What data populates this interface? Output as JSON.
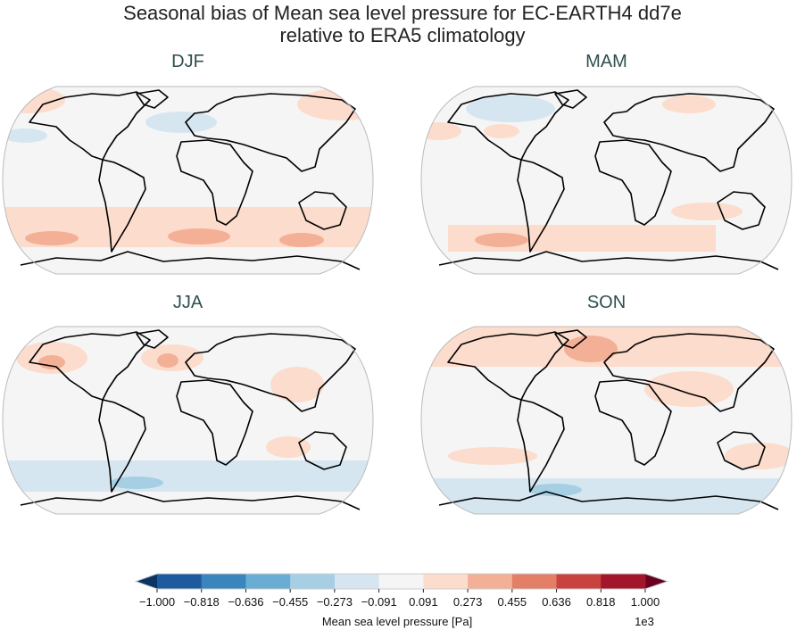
{
  "title_line1": "Seasonal bias of Mean sea level pressure for EC-EARTH4 dd7e",
  "title_line2": "relative to ERA5 climatology",
  "panels": [
    {
      "title": "DJF"
    },
    {
      "title": "MAM"
    },
    {
      "title": "JJA"
    },
    {
      "title": "SON"
    }
  ],
  "colorbar": {
    "label": "Mean sea level pressure [Pa]",
    "multiplier": "1e3",
    "ticks": [
      "−1.000",
      "−0.818",
      "−0.636",
      "−0.455",
      "−0.273",
      "−0.091",
      "0.091",
      "0.273",
      "0.455",
      "0.636",
      "0.818",
      "1.000"
    ],
    "colors": [
      "#1f5a9e",
      "#3a85bd",
      "#6aadd4",
      "#a6cfe4",
      "#d6e6f0",
      "#f5f5f5",
      "#fcdccc",
      "#f4b096",
      "#e27f66",
      "#c8423f",
      "#a3152a"
    ],
    "under_color": "#0b3464",
    "over_color": "#6a0020",
    "extend": "both"
  }
}
